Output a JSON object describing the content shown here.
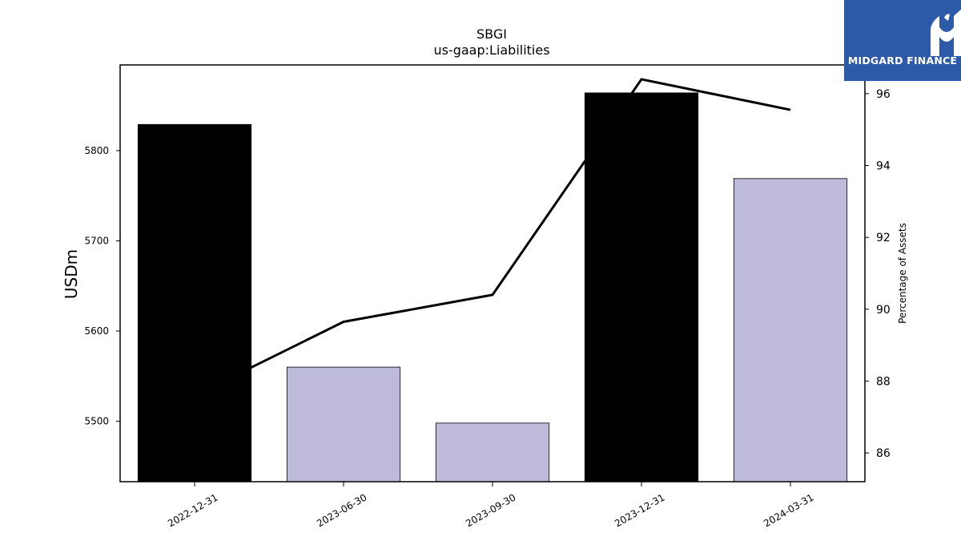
{
  "logo": {
    "text": "MIDGARD FINANCE",
    "icon": "midgard-m-icon",
    "color": "#2d5aa8"
  },
  "chart_data": {
    "type": "bar",
    "title": "SBGI",
    "subtitle": "us-gaap:Liabilities",
    "ylabel": "USDm",
    "y2label": "Percentage of Assets",
    "categories": [
      "2022-12-31",
      "2023-06-30",
      "2023-09-30",
      "2023-12-31",
      "2024-03-31"
    ],
    "ylim": [
      5433,
      5895
    ],
    "yticks": [
      5500,
      5600,
      5700,
      5800
    ],
    "y2lim": [
      85.2,
      96.8
    ],
    "y2ticks": [
      86,
      88,
      90,
      92,
      94,
      96
    ],
    "series": [
      {
        "type": "bar",
        "values": [
          5829,
          5560,
          5498,
          5864,
          5769
        ],
        "colors": [
          "#000000",
          "#bebbda",
          "#bebbda",
          "#000000",
          "#bebbda"
        ]
      },
      {
        "type": "line",
        "axis": "right",
        "values": [
          87.6,
          89.65,
          90.4,
          96.4,
          95.55
        ],
        "color": "#000000"
      }
    ],
    "grid": false,
    "legend": "none"
  }
}
